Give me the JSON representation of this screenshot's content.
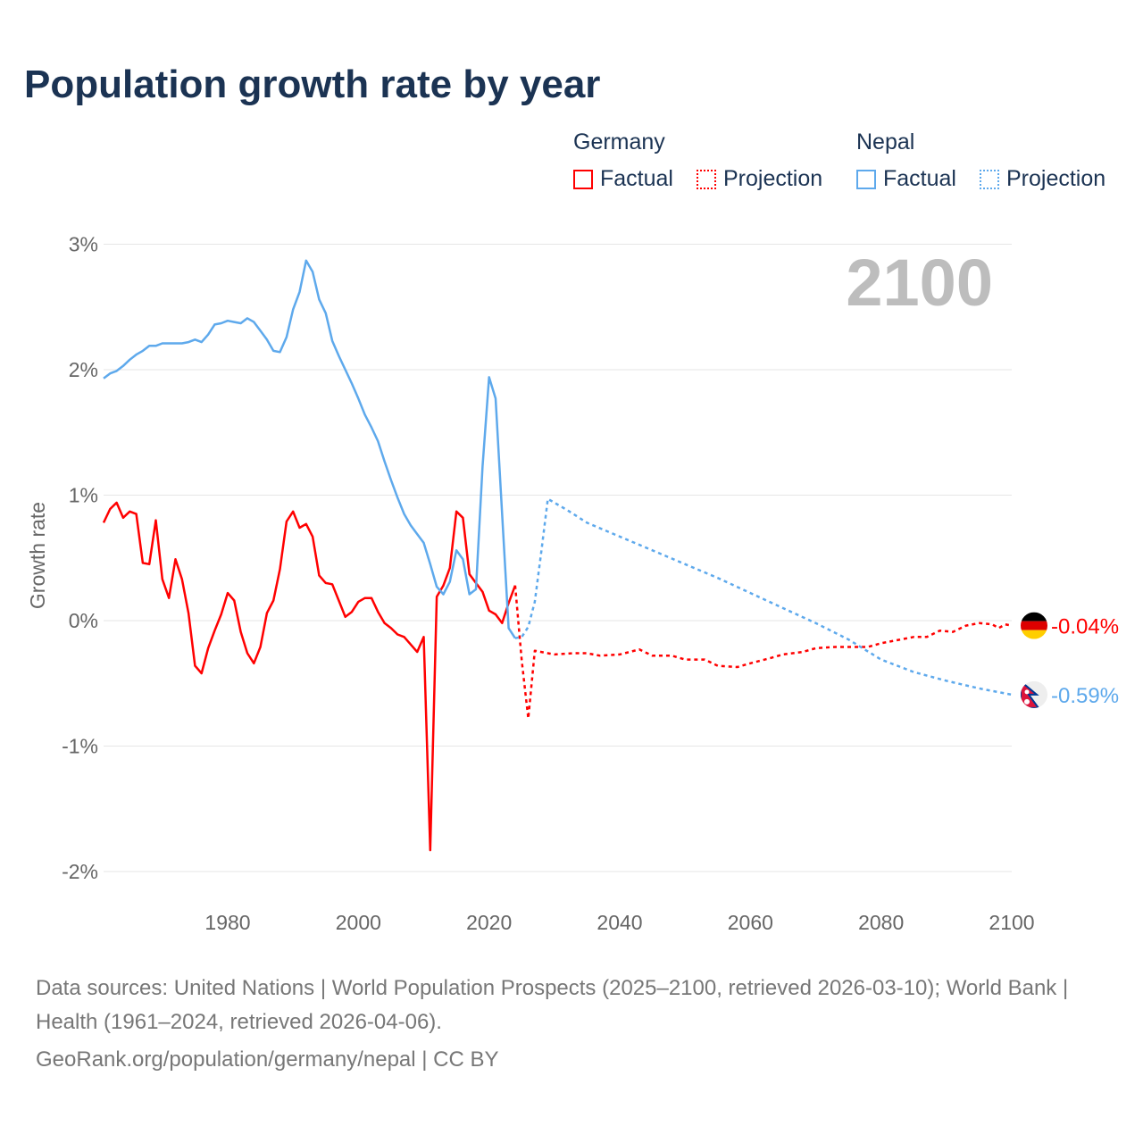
{
  "title": "Population growth rate by year",
  "legend": {
    "groups": [
      {
        "name": "Germany",
        "color": "#ff0000",
        "factual": "Factual",
        "projection": "Projection"
      },
      {
        "name": "Nepal",
        "color": "#5ea9ec",
        "factual": "Factual",
        "projection": "Projection"
      }
    ]
  },
  "year_label": "2100",
  "footer": {
    "sources": "Data sources: United Nations | World Population Prospects (2025–2100, retrieved 2026-03-10); World Bank | Health (1961–2024, retrieved 2026-04-06).",
    "credit": "GeoRank.org/population/germany/nepal | CC BY"
  },
  "chart_data": {
    "type": "line",
    "title": "Population growth rate by year",
    "xlabel": "",
    "ylabel": "Growth rate",
    "xlim": [
      1961,
      2100
    ],
    "ylim": [
      -2.15,
      3.1
    ],
    "xticks": [
      1980,
      2000,
      2020,
      2040,
      2060,
      2080,
      2100
    ],
    "yticks": [
      {
        "v": 3,
        "label": "3%"
      },
      {
        "v": 2,
        "label": "2%"
      },
      {
        "v": 1,
        "label": "1%"
      },
      {
        "v": 0,
        "label": "0%"
      },
      {
        "v": -1,
        "label": "-1%"
      },
      {
        "v": -2,
        "label": "-2%"
      }
    ],
    "grid": true,
    "legend_position": "top-right",
    "series": [
      {
        "name": "Germany Factual",
        "color": "#ff0000",
        "dashed": false,
        "start": 1961,
        "values": [
          0.78,
          0.89,
          0.94,
          0.82,
          0.87,
          0.85,
          0.46,
          0.45,
          0.8,
          0.33,
          0.18,
          0.49,
          0.33,
          0.06,
          -0.36,
          -0.42,
          -0.22,
          -0.08,
          0.05,
          0.22,
          0.16,
          -0.09,
          -0.26,
          -0.34,
          -0.21,
          0.06,
          0.16,
          0.41,
          0.79,
          0.87,
          0.74,
          0.77,
          0.67,
          0.36,
          0.3,
          0.29,
          0.16,
          0.03,
          0.07,
          0.15,
          0.18,
          0.18,
          0.07,
          -0.02,
          -0.06,
          -0.11,
          -0.13,
          -0.19,
          -0.25,
          -0.13,
          -1.83,
          0.19,
          0.28,
          0.42,
          0.87,
          0.82,
          0.37,
          0.3,
          0.23,
          0.08,
          0.05,
          -0.02,
          0.14,
          0.28
        ]
      },
      {
        "name": "Germany Projection",
        "color": "#ff0000",
        "dashed": true,
        "x": [
          2024,
          2025,
          2026,
          2027,
          2030,
          2033,
          2035,
          2037,
          2040,
          2043,
          2045,
          2048,
          2050,
          2053,
          2055,
          2058,
          2060,
          2063,
          2065,
          2068,
          2070,
          2073,
          2075,
          2078,
          2080,
          2083,
          2085,
          2087,
          2089,
          2091,
          2093,
          2095,
          2097,
          2098,
          2099,
          2100
        ],
        "y": [
          0.28,
          -0.32,
          -0.78,
          -0.24,
          -0.27,
          -0.26,
          -0.26,
          -0.28,
          -0.27,
          -0.23,
          -0.28,
          -0.28,
          -0.31,
          -0.31,
          -0.36,
          -0.37,
          -0.34,
          -0.3,
          -0.27,
          -0.25,
          -0.22,
          -0.21,
          -0.21,
          -0.21,
          -0.18,
          -0.15,
          -0.13,
          -0.13,
          -0.08,
          -0.09,
          -0.04,
          -0.02,
          -0.03,
          -0.06,
          -0.03,
          -0.04
        ]
      },
      {
        "name": "Nepal Factual",
        "color": "#5ea9ec",
        "dashed": false,
        "start": 1961,
        "values": [
          1.93,
          1.97,
          1.99,
          2.03,
          2.08,
          2.12,
          2.15,
          2.19,
          2.19,
          2.21,
          2.21,
          2.21,
          2.21,
          2.22,
          2.24,
          2.22,
          2.28,
          2.36,
          2.37,
          2.39,
          2.38,
          2.37,
          2.41,
          2.38,
          2.31,
          2.24,
          2.15,
          2.14,
          2.26,
          2.48,
          2.62,
          2.87,
          2.78,
          2.56,
          2.45,
          2.23,
          2.11,
          2.0,
          1.89,
          1.77,
          1.64,
          1.54,
          1.43,
          1.27,
          1.12,
          0.98,
          0.85,
          0.76,
          0.69,
          0.62,
          0.45,
          0.27,
          0.21,
          0.31,
          0.56,
          0.49,
          0.21,
          0.25,
          1.23,
          1.94,
          1.77,
          0.85,
          -0.06,
          -0.14
        ]
      },
      {
        "name": "Nepal Projection",
        "color": "#5ea9ec",
        "dashed": true,
        "x": [
          2024,
          2025,
          2026,
          2027,
          2028,
          2029,
          2032,
          2035,
          2040,
          2045,
          2050,
          2055,
          2060,
          2065,
          2070,
          2075,
          2080,
          2085,
          2090,
          2095,
          2100
        ],
        "y": [
          -0.14,
          -0.13,
          -0.05,
          0.15,
          0.55,
          0.97,
          0.88,
          0.78,
          0.67,
          0.56,
          0.45,
          0.34,
          0.22,
          0.1,
          -0.02,
          -0.15,
          -0.31,
          -0.41,
          -0.48,
          -0.54,
          -0.59
        ]
      }
    ],
    "end_labels": [
      {
        "country": "Germany",
        "value": -0.04,
        "label": "-0.04%",
        "color": "#ff0000"
      },
      {
        "country": "Nepal",
        "value": -0.59,
        "label": "-0.59%",
        "color": "#5ea9ec"
      }
    ]
  }
}
